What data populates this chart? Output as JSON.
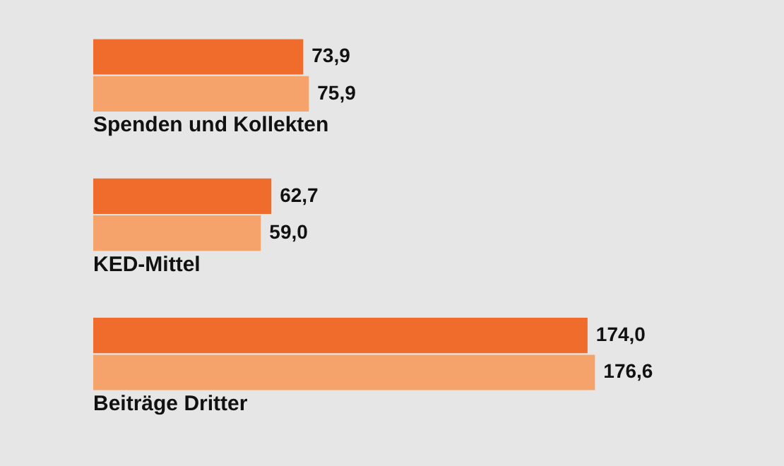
{
  "chart_data": {
    "type": "bar",
    "orientation": "horizontal",
    "categories": [
      "Spenden und Kollekten",
      "KED-Mittel",
      "Beiträge Dritter"
    ],
    "series": [
      {
        "color": "#ef6c2c",
        "values": [
          73.9,
          62.7,
          174.0
        ],
        "value_labels": [
          "73,9",
          "62,7",
          "174,0"
        ]
      },
      {
        "color": "#f5a36b",
        "values": [
          75.9,
          59.0,
          176.6
        ],
        "value_labels": [
          "75,9",
          "59,0",
          "176,6"
        ]
      }
    ],
    "grid": false,
    "legend": false,
    "tick_labels": false
  }
}
